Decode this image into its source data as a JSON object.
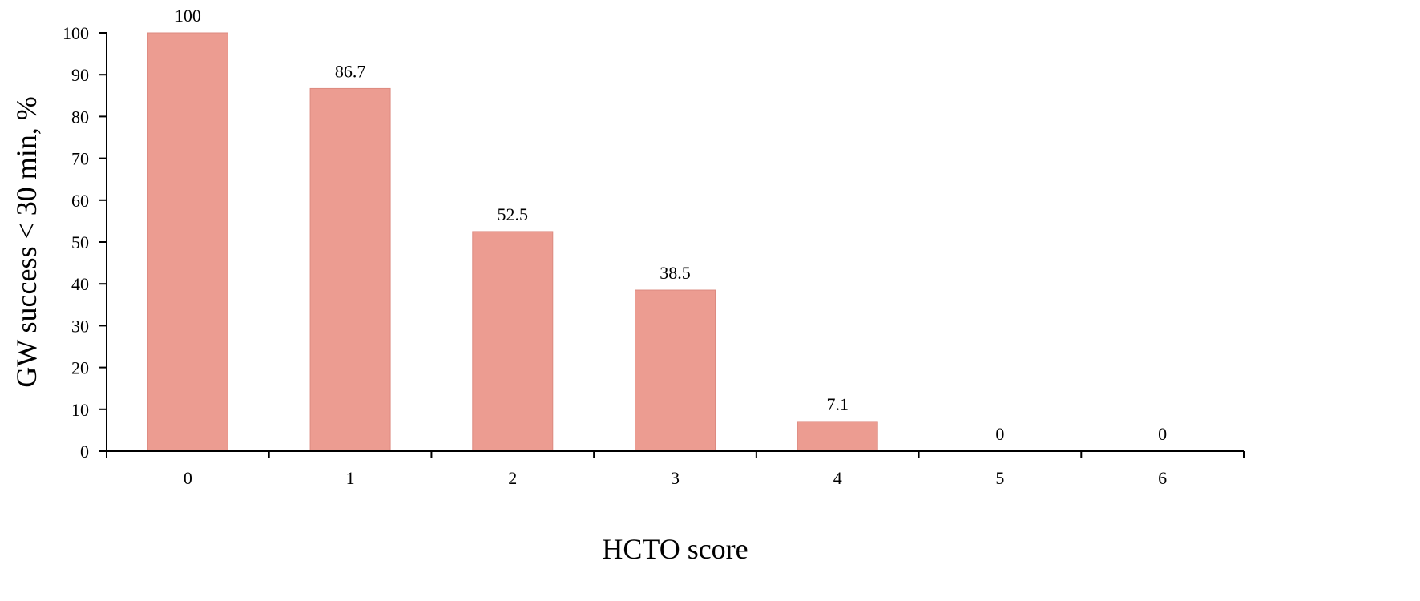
{
  "chart_data": {
    "type": "bar",
    "categories": [
      "0",
      "1",
      "2",
      "3",
      "4",
      "5",
      "6"
    ],
    "values": [
      100,
      86.7,
      52.5,
      38.5,
      7.1,
      0,
      0
    ],
    "data_labels": [
      "100",
      "86.7",
      "52.5",
      "38.5",
      "7.1",
      "0",
      "0"
    ],
    "title": "",
    "xlabel": "HCTO score",
    "ylabel": "GW success < 30 min, %",
    "ylim": [
      0,
      100
    ],
    "yticks": [
      "0",
      "10",
      "20",
      "30",
      "40",
      "50",
      "60",
      "70",
      "80",
      "90",
      "100"
    ],
    "grid": false,
    "legend": "none",
    "bar_color": "#ec9c91"
  }
}
